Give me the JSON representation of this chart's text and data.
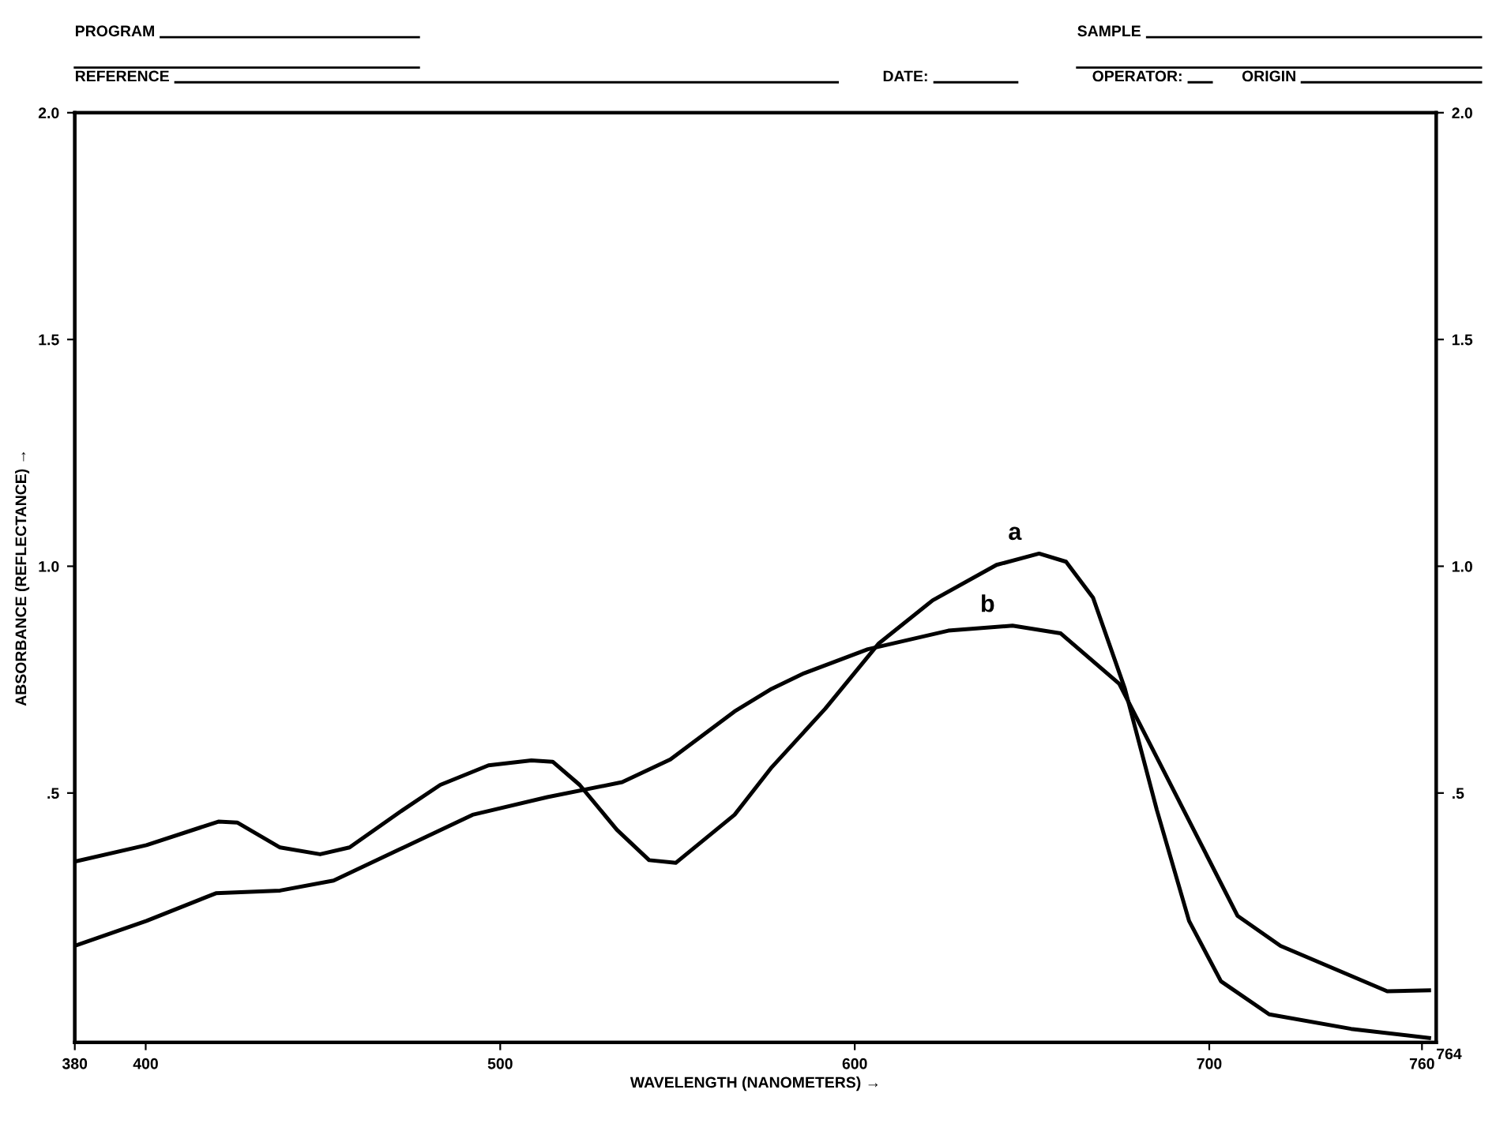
{
  "chart_data": {
    "type": "line",
    "xlabel": "WAVELENGTH (NANOMETERS) →",
    "ylabel": "ABSORBANCE (REFLECTANCE) →",
    "xlim": [
      380,
      764
    ],
    "xticks": [
      380,
      400,
      500,
      600,
      700,
      760
    ],
    "ylim": [
      -0.05,
      2.0
    ],
    "yticks": [
      {
        "value": 0.5,
        "label": ".5"
      },
      {
        "value": 1.0,
        "label": "1.0"
      },
      {
        "value": 1.5,
        "label": "1.5"
      },
      {
        "value": 2.0,
        "label": "2.0"
      }
    ],
    "y2lim": [
      -0.05,
      2.0
    ],
    "y2ticks": [
      {
        "value": 0.5,
        "label": ".5"
      },
      {
        "value": 1.0,
        "label": "1.0"
      },
      {
        "value": 1.5,
        "label": "1.5"
      },
      {
        "value": 2.0,
        "label": "2.0"
      }
    ],
    "grid": false,
    "legend": false,
    "line_style": "solid",
    "marker": "none",
    "series": [
      {
        "name": "a",
        "color": "#000000",
        "x": [
          380.7,
          400.2,
          420.5,
          425.8,
          437.9,
          449.2,
          457.5,
          472.6,
          483.1,
          496.7,
          508.8,
          514.8,
          522.4,
          532.9,
          542,
          549.5,
          566.1,
          576.6,
          591.7,
          606.8,
          622,
          640,
          652,
          659.6,
          667.2,
          676.2,
          685.2,
          694.3,
          703.3,
          716.9,
          740,
          762
        ],
        "values": [
          0.35,
          0.385,
          0.437,
          0.435,
          0.38,
          0.365,
          0.38,
          0.463,
          0.518,
          0.561,
          0.572,
          0.569,
          0.518,
          0.419,
          0.352,
          0.346,
          0.452,
          0.557,
          0.686,
          0.83,
          0.925,
          1.003,
          1.028,
          1.01,
          0.931,
          0.73,
          0.463,
          0.218,
          0.085,
          0.012,
          -0.02,
          -0.04
        ]
      },
      {
        "name": "b",
        "color": "#000000",
        "x": [
          380.7,
          400.2,
          419.8,
          437.9,
          453,
          471.1,
          492.2,
          513.3,
          534.4,
          548,
          566.1,
          576.6,
          585.7,
          603.7,
          626.4,
          644.5,
          658.1,
          674.6,
          691.3,
          708,
          720.1,
          750.2,
          762
        ],
        "values": [
          0.165,
          0.218,
          0.279,
          0.285,
          0.307,
          0.374,
          0.452,
          0.491,
          0.524,
          0.574,
          0.68,
          0.73,
          0.764,
          0.817,
          0.858,
          0.869,
          0.852,
          0.741,
          0.485,
          0.229,
          0.163,
          0.063,
          0.065
        ]
      }
    ],
    "annotations": [
      "764",
      "PROGRAM",
      "SAMPLE",
      "REFERENCE",
      "DATE:",
      "OPERATOR:",
      "ORIGIN"
    ]
  }
}
